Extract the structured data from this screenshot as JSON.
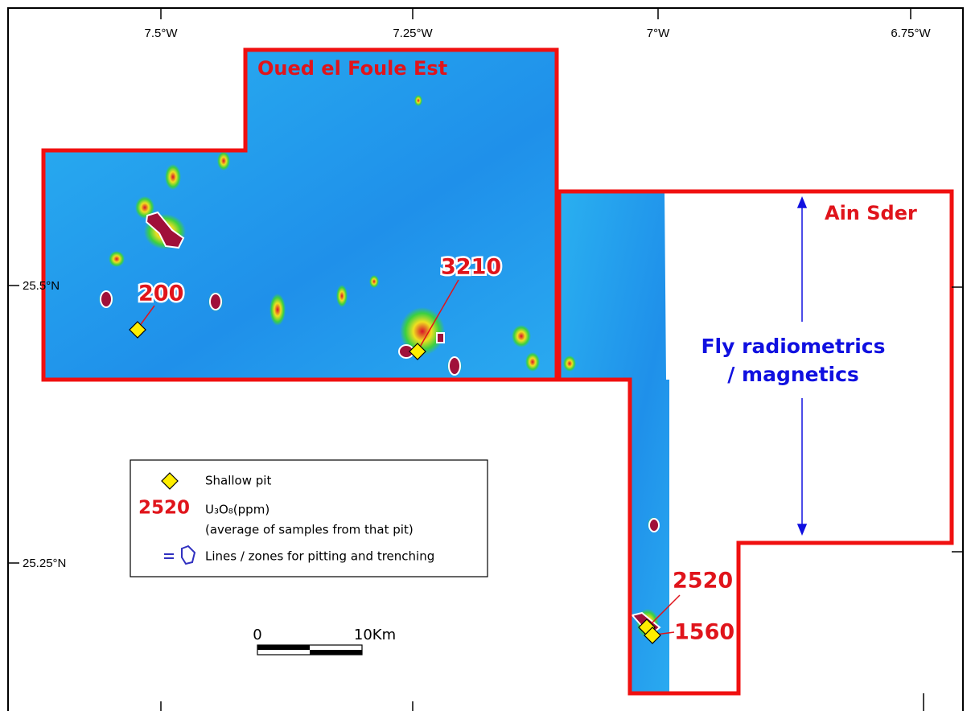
{
  "map": {
    "lon_ticks": [
      "7.5°W",
      "7.25°W",
      "7°W",
      "6.75°W"
    ],
    "lat_ticks": [
      "25.5°N",
      "25.25°N"
    ],
    "areas": [
      "Oued el Foule Est",
      "Ain Sder"
    ],
    "annotation": [
      "Fly radiometrics",
      "/ magnetics"
    ],
    "pits": [
      {
        "value": 200
      },
      {
        "value": 3210
      },
      {
        "value": 2520
      },
      {
        "value": 1560
      }
    ],
    "legend": {
      "pit": "Shallow pit",
      "sample_value": 2520,
      "unit": "U₃O₈(ppm)",
      "note": "(average of samples from that pit)",
      "zones": "Lines / zones for pitting and trenching"
    },
    "scale_bar": {
      "start": 0,
      "end": "10Km"
    }
  }
}
